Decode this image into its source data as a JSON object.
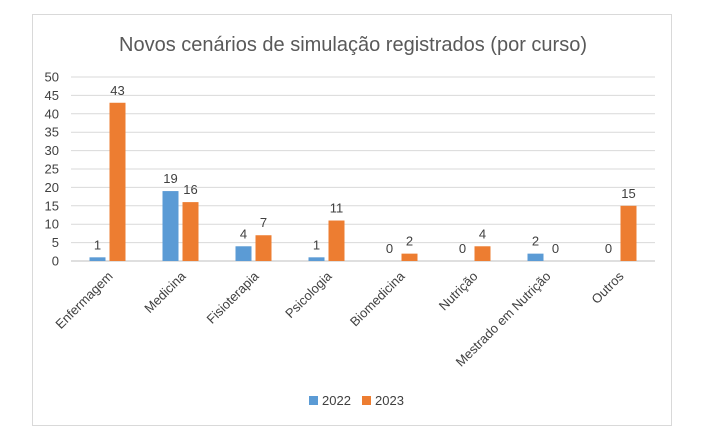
{
  "chart_data": {
    "type": "bar",
    "title": "Novos cenários de simulação registrados (por curso)",
    "categories": [
      "Enfermagem",
      "Medicina",
      "Fisioterapia",
      "Psicologia",
      "Biomedicina",
      "Nutrição",
      "Mestrado em Nutrição",
      "Outros"
    ],
    "series": [
      {
        "name": "2022",
        "color": "#5b9bd5",
        "values": [
          1,
          19,
          4,
          1,
          0,
          0,
          2,
          0
        ]
      },
      {
        "name": "2023",
        "color": "#ed7d31",
        "values": [
          43,
          16,
          7,
          11,
          2,
          4,
          0,
          15
        ]
      }
    ],
    "ylim": [
      0,
      50
    ],
    "yticks": [
      0,
      5,
      10,
      15,
      20,
      25,
      30,
      35,
      40,
      45,
      50
    ],
    "grid": true,
    "legend": "bottom",
    "xlabel": "",
    "ylabel": ""
  }
}
